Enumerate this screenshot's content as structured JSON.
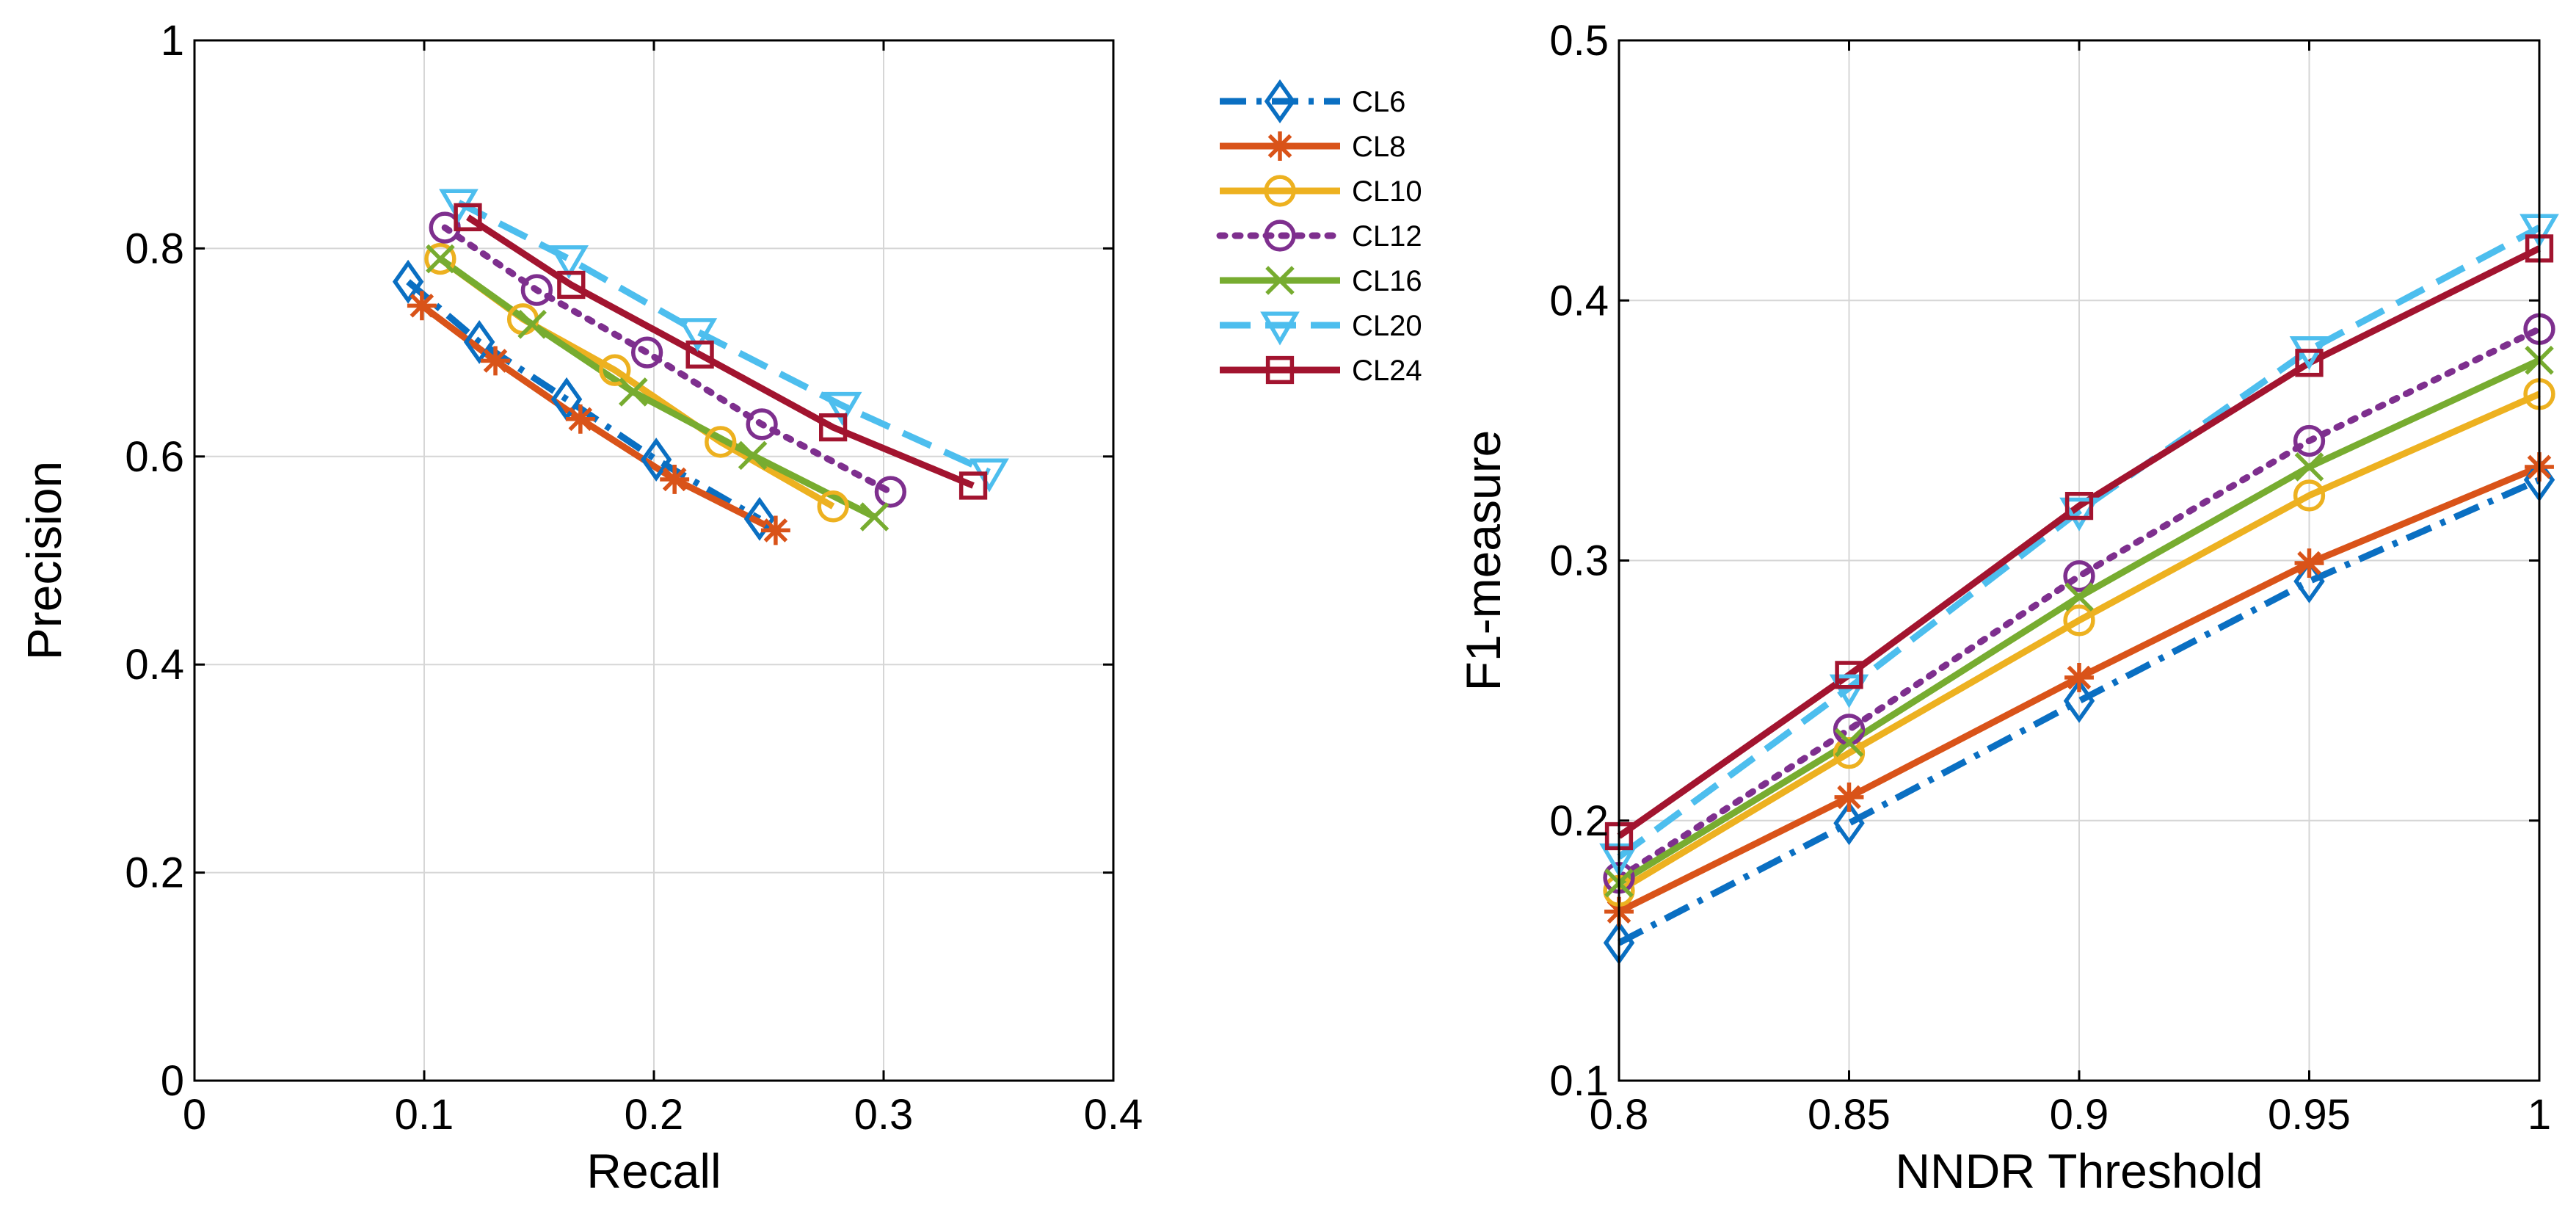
{
  "chart_data": [
    {
      "type": "line",
      "title": "",
      "xlabel": "Recall",
      "ylabel": "Precision",
      "xlim": [
        0,
        0.4
      ],
      "ylim": [
        0,
        1
      ],
      "xticks": [
        0,
        0.1,
        0.2,
        0.3,
        0.4
      ],
      "yticks": [
        0,
        0.2,
        0.4,
        0.6,
        0.8,
        1
      ],
      "xtick_labels": [
        "0",
        "0.1",
        "0.2",
        "0.3",
        "0.4"
      ],
      "ytick_labels": [
        "0",
        "0.2",
        "0.4",
        "0.6",
        "0.8",
        "1"
      ],
      "grid": true,
      "legend": "outside-right",
      "series": [
        {
          "name": "CL6",
          "x": [
            0.093,
            0.124,
            0.162,
            0.201,
            0.246
          ],
          "y": [
            0.768,
            0.71,
            0.655,
            0.597,
            0.54
          ]
        },
        {
          "name": "CL8",
          "x": [
            0.099,
            0.131,
            0.168,
            0.209,
            0.253
          ],
          "y": [
            0.745,
            0.692,
            0.636,
            0.578,
            0.529
          ]
        },
        {
          "name": "CL10",
          "x": [
            0.107,
            0.143,
            0.183,
            0.229,
            0.278
          ],
          "y": [
            0.79,
            0.732,
            0.683,
            0.614,
            0.552
          ]
        },
        {
          "name": "CL12",
          "x": [
            0.109,
            0.149,
            0.197,
            0.247,
            0.303
          ],
          "y": [
            0.82,
            0.76,
            0.7,
            0.631,
            0.566
          ]
        },
        {
          "name": "CL16",
          "x": [
            0.107,
            0.147,
            0.191,
            0.243,
            0.296
          ],
          "y": [
            0.79,
            0.727,
            0.662,
            0.601,
            0.542
          ]
        },
        {
          "name": "CL20",
          "x": [
            0.115,
            0.163,
            0.219,
            0.282,
            0.346
          ],
          "y": [
            0.844,
            0.79,
            0.72,
            0.649,
            0.585
          ]
        },
        {
          "name": "CL24",
          "x": [
            0.119,
            0.164,
            0.22,
            0.278,
            0.339
          ],
          "y": [
            0.83,
            0.765,
            0.698,
            0.628,
            0.572
          ]
        }
      ]
    },
    {
      "type": "line",
      "title": "",
      "xlabel": "NNDR Threshold",
      "ylabel": "F1-measure",
      "xlim": [
        0.8,
        1
      ],
      "ylim": [
        0.1,
        0.5
      ],
      "xticks": [
        0.8,
        0.85,
        0.9,
        0.95,
        1
      ],
      "yticks": [
        0.1,
        0.2,
        0.3,
        0.4,
        0.5
      ],
      "xtick_labels": [
        "0.8",
        "0.85",
        "0.9",
        "0.95",
        "1"
      ],
      "ytick_labels": [
        "0.1",
        "0.2",
        "0.3",
        "0.4",
        "0.5"
      ],
      "grid": true,
      "legend": "none",
      "series": [
        {
          "name": "CL6",
          "x": [
            0.8,
            0.85,
            0.9,
            0.95,
            1
          ],
          "y": [
            0.153,
            0.199,
            0.246,
            0.292,
            0.331
          ]
        },
        {
          "name": "CL8",
          "x": [
            0.8,
            0.85,
            0.9,
            0.95,
            1
          ],
          "y": [
            0.165,
            0.209,
            0.255,
            0.299,
            0.336
          ]
        },
        {
          "name": "CL10",
          "x": [
            0.8,
            0.85,
            0.9,
            0.95,
            1
          ],
          "y": [
            0.173,
            0.226,
            0.277,
            0.325,
            0.364
          ]
        },
        {
          "name": "CL12",
          "x": [
            0.8,
            0.85,
            0.9,
            0.95,
            1
          ],
          "y": [
            0.178,
            0.235,
            0.294,
            0.346,
            0.389
          ]
        },
        {
          "name": "CL16",
          "x": [
            0.8,
            0.85,
            0.9,
            0.95,
            1
          ],
          "y": [
            0.176,
            0.23,
            0.286,
            0.336,
            0.377
          ]
        },
        {
          "name": "CL20",
          "x": [
            0.8,
            0.85,
            0.9,
            0.95,
            1
          ],
          "y": [
            0.186,
            0.251,
            0.319,
            0.381,
            0.428
          ]
        },
        {
          "name": "CL24",
          "x": [
            0.8,
            0.85,
            0.9,
            0.95,
            1
          ],
          "y": [
            0.194,
            0.256,
            0.321,
            0.376,
            0.42
          ]
        }
      ]
    }
  ],
  "series_styles": [
    {
      "name": "CL6",
      "color": "#0a6fc2",
      "dash": "dashdot",
      "marker": "diamond"
    },
    {
      "name": "CL8",
      "color": "#d95319",
      "dash": "solid",
      "marker": "asterisk"
    },
    {
      "name": "CL10",
      "color": "#edb120",
      "dash": "solid",
      "marker": "circle"
    },
    {
      "name": "CL12",
      "color": "#7e2f8e",
      "dash": "dotted",
      "marker": "circle"
    },
    {
      "name": "CL16",
      "color": "#77ac30",
      "dash": "solid",
      "marker": "x"
    },
    {
      "name": "CL20",
      "color": "#4dbeee",
      "dash": "dashed",
      "marker": "triangle-down"
    },
    {
      "name": "CL24",
      "color": "#a2142f",
      "dash": "solid",
      "marker": "square"
    }
  ]
}
